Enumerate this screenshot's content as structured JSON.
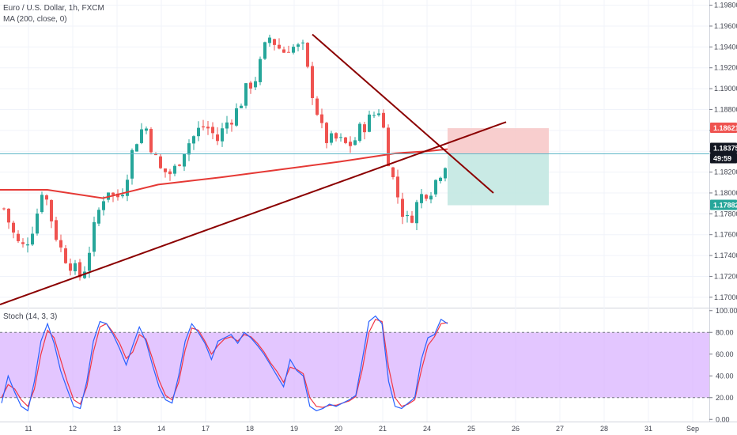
{
  "header": {
    "symbol_title": "Euro / U.S. Dollar, 1h, FXCM",
    "ma_label": "MA (200, close, 0)",
    "stoch_label": "Stoch (14, 3, 3)"
  },
  "colors": {
    "bull": "#26a69a",
    "bear": "#ef5350",
    "ma": "#e53935",
    "trendline": "#8b0000",
    "horizontal_line": "#5fb7c8",
    "stoch_k": "#2962ff",
    "stoch_d": "#f23645",
    "stoch_band": "#d9b3ff",
    "loss_zone": "#f7c5c5",
    "profit_zone": "#bfe6e1"
  },
  "chart_data": {
    "type": "candlestick",
    "price_axis": {
      "ylim": [
        1.169,
        1.1985
      ],
      "ticks": [
        "1.19800",
        "1.19600",
        "1.19400",
        "1.19200",
        "1.19000",
        "1.18800",
        "1.18600",
        "1.18400",
        "1.18200",
        "1.18000",
        "1.17800",
        "1.17600",
        "1.17400",
        "1.17200",
        "1.17000"
      ]
    },
    "date_axis": {
      "ticks": [
        "11",
        "12",
        "13",
        "14",
        "17",
        "18",
        "19",
        "20",
        "21",
        "24",
        "25",
        "26",
        "27",
        "28",
        "31",
        "Sep"
      ]
    },
    "price_badges": [
      {
        "label": "1.18621",
        "value": 1.18621,
        "color": "#ef5350"
      },
      {
        "label": "1.18375",
        "value": 1.18375,
        "color": "#131722"
      },
      {
        "label": "49:59",
        "value": 1.18375,
        "color": "#131722"
      },
      {
        "label": "1.17882",
        "value": 1.17882,
        "color": "#26a69a"
      }
    ],
    "current_price": 1.18375,
    "position": {
      "entry": 1.18375,
      "stop": 1.18621,
      "target": 1.17882
    },
    "stochastic": {
      "ylim": [
        -2,
        102
      ],
      "ticks": [
        "100.00",
        "80.00",
        "60.00",
        "40.00",
        "20.00",
        "0.00"
      ],
      "upper_band": 80,
      "lower_band": 20
    },
    "price_path": [
      1.1785,
      1.1768,
      1.1752,
      1.1748,
      1.176,
      1.1778,
      1.1808,
      1.1782,
      1.176,
      1.1742,
      1.1735,
      1.1725,
      1.1718,
      1.1742,
      1.1768,
      1.1792,
      1.1805,
      1.1795,
      1.1798,
      1.182,
      1.1845,
      1.186,
      1.1862,
      1.1838,
      1.1822,
      1.182,
      1.1818,
      1.1832,
      1.1845,
      1.1852,
      1.186,
      1.1865,
      1.1858,
      1.185,
      1.1865,
      1.1872,
      1.188,
      1.1895,
      1.1905,
      1.1912,
      1.1935,
      1.195,
      1.1942,
      1.1935,
      1.1942,
      1.1938,
      1.194,
      1.191,
      1.1885,
      1.186,
      1.1848,
      1.1852,
      1.1848,
      1.1845,
      1.185,
      1.1862,
      1.1868,
      1.1875,
      1.1882,
      1.184,
      1.1812,
      1.179,
      1.1772,
      1.178,
      1.1795,
      1.1802,
      1.1805,
      1.1818,
      1.183
    ],
    "stoch_k": [
      15,
      40,
      25,
      12,
      8,
      35,
      72,
      88,
      70,
      45,
      28,
      12,
      10,
      35,
      72,
      90,
      88,
      78,
      65,
      50,
      68,
      85,
      72,
      50,
      30,
      18,
      15,
      40,
      72,
      88,
      80,
      70,
      55,
      72,
      75,
      78,
      70,
      80,
      75,
      68,
      60,
      50,
      40,
      30,
      55,
      45,
      40,
      12,
      8,
      10,
      14,
      12,
      15,
      18,
      22,
      55,
      90,
      95,
      88,
      35,
      12,
      10,
      15,
      20,
      55,
      75,
      78,
      92,
      88
    ],
    "stoch_d": [
      20,
      32,
      28,
      18,
      12,
      28,
      60,
      82,
      75,
      55,
      35,
      18,
      14,
      30,
      62,
      85,
      88,
      80,
      70,
      56,
      62,
      78,
      74,
      56,
      36,
      22,
      18,
      34,
      64,
      84,
      82,
      72,
      60,
      68,
      74,
      76,
      72,
      78,
      76,
      70,
      62,
      52,
      44,
      34,
      48,
      46,
      42,
      20,
      12,
      11,
      13,
      13,
      15,
      17,
      21,
      46,
      80,
      92,
      90,
      48,
      20,
      12,
      14,
      18,
      45,
      68,
      76,
      88,
      89
    ]
  }
}
